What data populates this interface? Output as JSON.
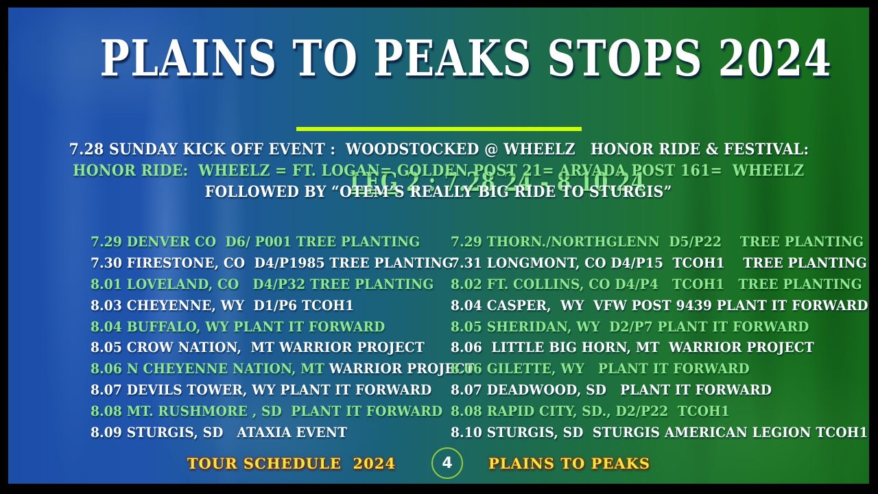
{
  "title": "PLAINS TO PEAKS STOPS 2024",
  "subtitle": {
    "underlined": "LEG",
    "rest": " 2 : 7.28.24 - 8.10.24"
  },
  "intro_lines": [
    {
      "text": "7.28 SUNDAY KICK OFF EVENT :  WOODSTOCKED @ WHEELZ   HONOR RIDE & FESTIVAL:",
      "color": "white"
    },
    {
      "text": "HONOR RIDE:  WHEELZ = FT. LOGAN= GOLDEN POST 21= ARVADA POST 161=  WHEELZ",
      "color": "green"
    },
    {
      "text": "FOLLOWED BY “OTEM’S REALLY BIG RIDE TO STURGIS”",
      "color": "white"
    }
  ],
  "schedule": {
    "left": [
      [
        {
          "text": "7.29 DENVER CO  D6/ P001 TREE PLANTING",
          "color": "green"
        }
      ],
      [
        {
          "text": "7.30 FIRESTONE, CO  D4/P1985 TREE PLANTING",
          "color": "white"
        }
      ],
      [
        {
          "text": "8.01 LOVELAND, CO   D4/P32 TREE PLANTING",
          "color": "green"
        }
      ],
      [
        {
          "text": "8.03 CHEYENNE, WY  D1/P6 TCOH1",
          "color": "white"
        }
      ],
      [
        {
          "text": "8.04 BUFFALO, WY PLANT IT FORWARD",
          "color": "green"
        }
      ],
      [
        {
          "text": "8.05 CROW NATION,  MT WARRIOR PROJECT",
          "color": "white"
        }
      ],
      [
        {
          "text": "8.06 N CHEYENNE NATION, MT ",
          "color": "green"
        },
        {
          "text": "WARRIOR PROJECT",
          "color": "white"
        }
      ],
      [
        {
          "text": "8.07 DEVILS TOWER, WY PLANT IT FORWARD",
          "color": "white"
        }
      ],
      [
        {
          "text": "8.08 MT. RUSHMORE , SD  PLANT IT FORWARD",
          "color": "green"
        }
      ],
      [
        {
          "text": "8.09 STURGIS, SD   ATAXIA EVENT",
          "color": "white"
        }
      ]
    ],
    "right": [
      [
        {
          "text": "7.29 THORN./NORTHGLENN  D5/P22    TREE PLANTING",
          "color": "green"
        }
      ],
      [
        {
          "text": "7.31 LONGMONT, CO D4/P15  TCOH1    TREE PLANTING",
          "color": "white"
        }
      ],
      [
        {
          "text": "8.02 FT. COLLINS, CO D4/P4   TCOH1   TREE PLANTING",
          "color": "green"
        }
      ],
      [
        {
          "text": "8.04 CASPER,  WY  VFW POST 9439 PLANT IT FORWARD",
          "color": "white"
        }
      ],
      [
        {
          "text": "8.05 SHERIDAN, WY  D2/P7 PLANT IT FORWARD",
          "color": "green"
        }
      ],
      [
        {
          "text": "8.06  LITTLE BIG HORN, MT  WARRIOR PROJECT",
          "color": "white"
        }
      ],
      [
        {
          "text": "8.06 GILETTE, WY   PLANT IT FORWARD",
          "color": "green"
        }
      ],
      [
        {
          "text": "8.07 DEADWOOD, SD   PLANT IT FORWARD",
          "color": "white"
        }
      ],
      [
        {
          "text": "8.08 RAPID CITY, SD., D2/P22  TCOH1",
          "color": "green"
        }
      ],
      [
        {
          "text": "8.10 STURGIS, SD  STURGIS AMERICAN LEGION TCOH1",
          "color": "white"
        }
      ]
    ]
  },
  "footer": {
    "left_label": "TOUR SCHEDULE  2024",
    "page_number": "4",
    "right_label": "PLAINS TO PEAKS"
  },
  "colors": {
    "green_text": "#8FE88F",
    "white_text": "#FFFFFF",
    "footer_yellow": "#F0EA3C",
    "underline_bar": "#CCFF00",
    "circle_border": "#9ACD32",
    "bg_left_blue": "#1C4EA9",
    "bg_mid_teal": "#1A617D",
    "bg_right_green": "#156A1C"
  }
}
